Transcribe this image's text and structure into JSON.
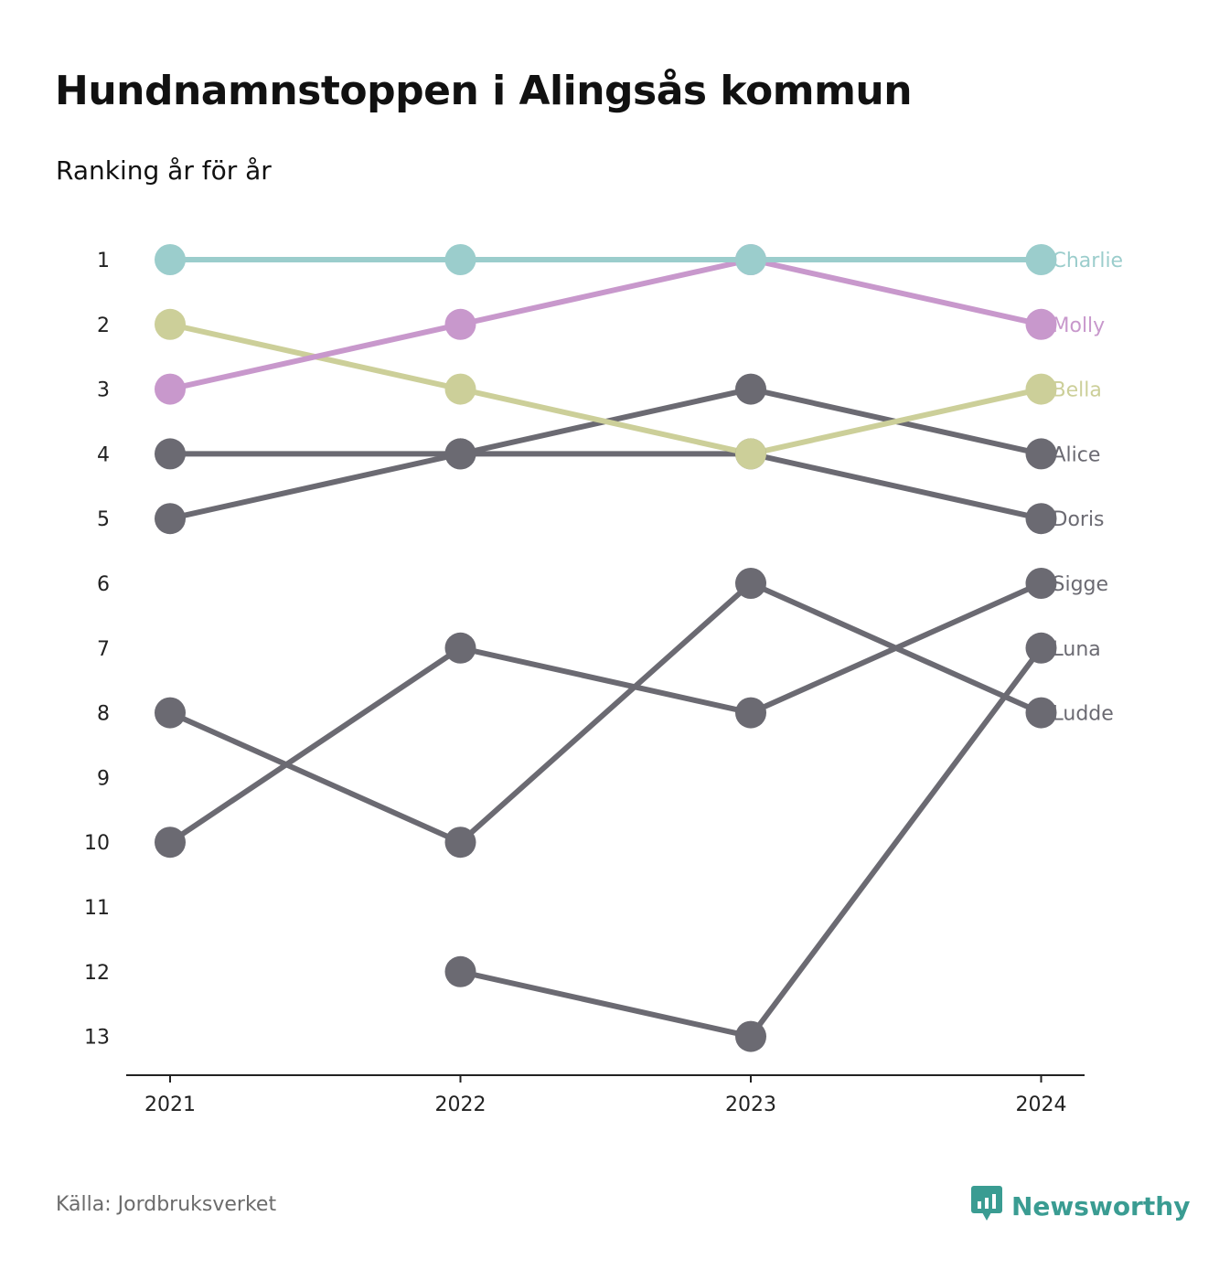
{
  "title": "Hundnamnstoppen i Alingsås kommun",
  "subtitle": "Ranking år för år",
  "source": "Källa: Jordbruksverket",
  "brand": {
    "name": "Newsworthy",
    "icon": "newsworthy-logo-icon",
    "color": "#3a9c92"
  },
  "chart_data": {
    "type": "line",
    "subtype": "bump",
    "x": [
      "2021",
      "2022",
      "2023",
      "2024"
    ],
    "y_ticks": [
      1,
      2,
      3,
      4,
      5,
      6,
      7,
      8,
      9,
      10,
      11,
      12,
      13
    ],
    "ylim": [
      1,
      13
    ],
    "y_inverted": true,
    "grid": false,
    "series": [
      {
        "name": "Ludde",
        "color": "#6b6a72",
        "values": [
          8,
          10,
          6,
          8
        ]
      },
      {
        "name": "Luna",
        "color": "#6b6a72",
        "values": [
          null,
          12,
          13,
          7
        ]
      },
      {
        "name": "Sigge",
        "color": "#6b6a72",
        "values": [
          10,
          7,
          8,
          6
        ]
      },
      {
        "name": "Doris",
        "color": "#6b6a72",
        "values": [
          4,
          4,
          4,
          5
        ]
      },
      {
        "name": "Alice",
        "color": "#6b6a72",
        "values": [
          5,
          4,
          3,
          4
        ]
      },
      {
        "name": "Bella",
        "color": "#cccf99",
        "values": [
          2,
          3,
          4,
          3
        ]
      },
      {
        "name": "Molly",
        "color": "#c898cc",
        "values": [
          3,
          2,
          1,
          2
        ]
      },
      {
        "name": "Charlie",
        "color": "#9bcdcc",
        "values": [
          1,
          1,
          1,
          1
        ]
      }
    ]
  }
}
